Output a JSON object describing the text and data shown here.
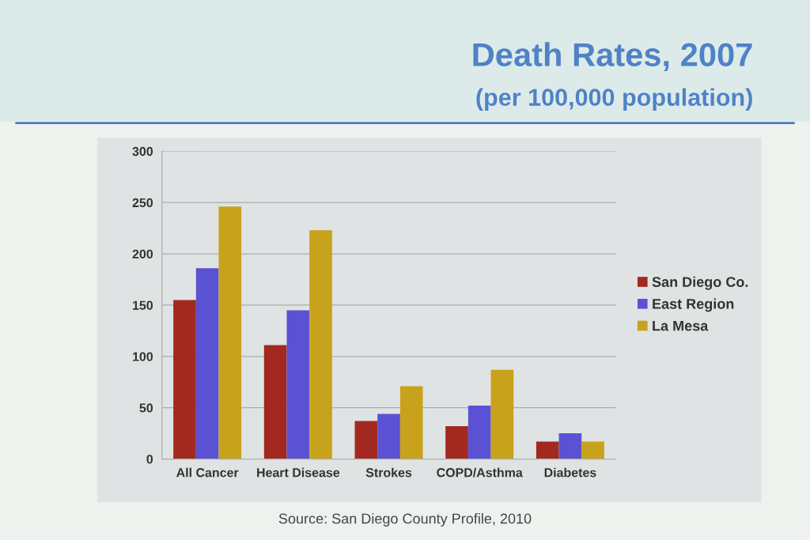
{
  "chart_data": {
    "type": "bar",
    "title": "Death Rates, 2007",
    "subtitle": "(per 100,000 population)",
    "categories": [
      "All Cancer",
      "Heart Disease",
      "Strokes",
      "COPD/Asthma",
      "Diabetes"
    ],
    "series": [
      {
        "name": "San Diego Co.",
        "color": "#a3281f",
        "values": [
          155,
          111,
          37,
          32,
          17
        ]
      },
      {
        "name": "East Region",
        "color": "#5a52d3",
        "values": [
          186,
          145,
          44,
          52,
          25
        ]
      },
      {
        "name": "La Mesa",
        "color": "#c9a21c",
        "values": [
          246,
          223,
          71,
          87,
          17
        ]
      }
    ],
    "ylim": [
      0,
      300
    ],
    "yticks": [
      0,
      50,
      100,
      150,
      200,
      250,
      300
    ],
    "grid": "y",
    "legend": "right",
    "annotations": [
      "Source: San Diego County Profile, 2010"
    ]
  }
}
